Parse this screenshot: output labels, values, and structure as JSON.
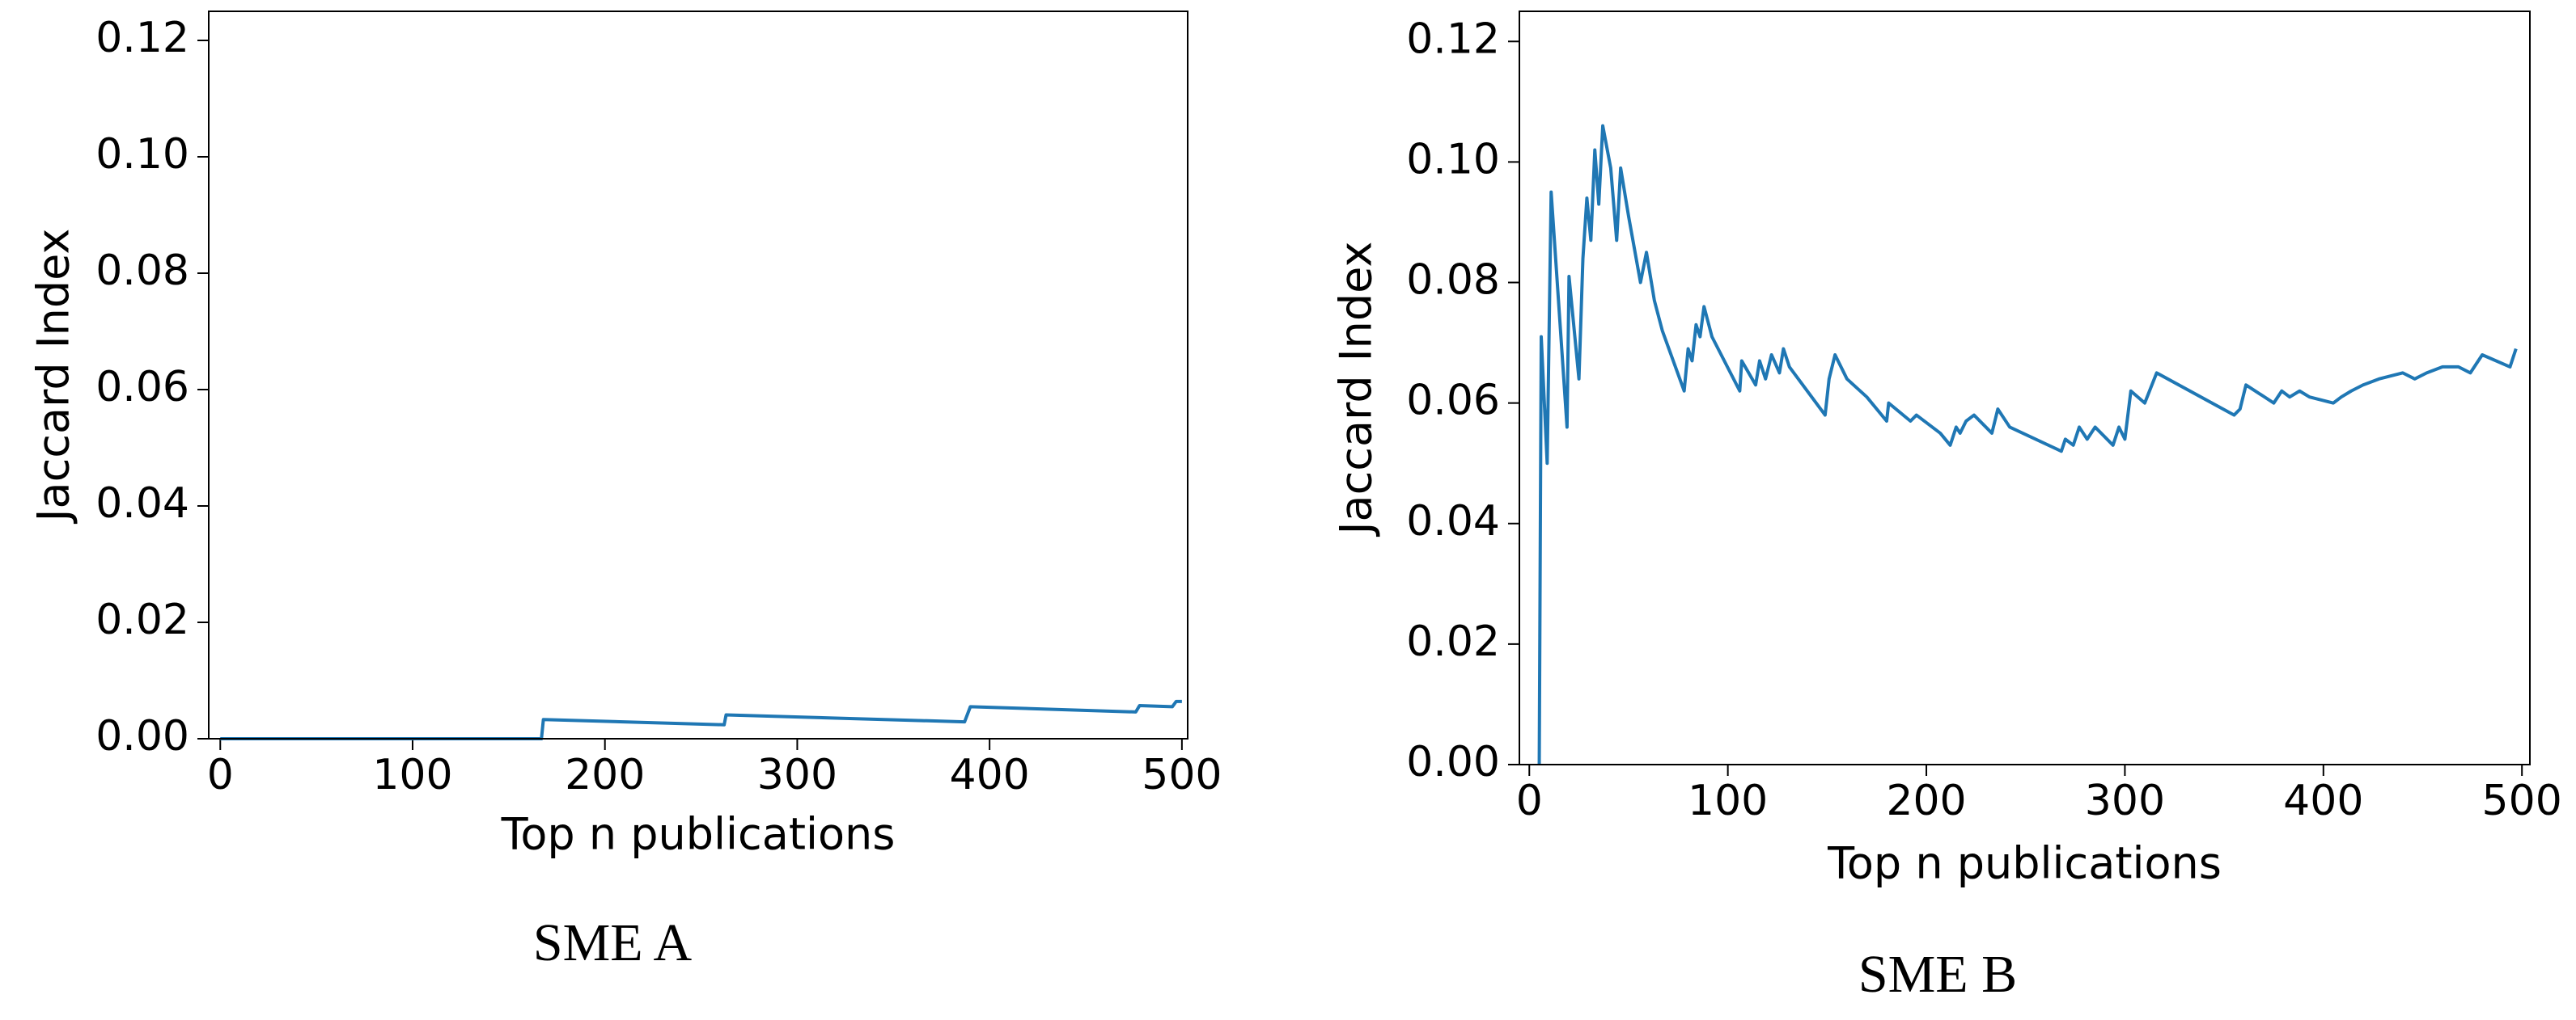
{
  "chart_data": [
    {
      "type": "line",
      "caption": "SME A",
      "xlabel": "Top n publications",
      "ylabel": "Jaccard Index",
      "x": [
        0,
        167,
        168,
        262,
        263,
        387,
        390,
        476,
        478,
        495,
        497,
        500
      ],
      "series": [
        {
          "color": "#1f77b4",
          "values": [
            0,
            0,
            0.0033,
            0.0024,
            0.0041,
            0.0029,
            0.0055,
            0.0046,
            0.0057,
            0.0055,
            0.0064,
            0.0064
          ]
        }
      ],
      "xlim": [
        -6,
        503
      ],
      "ylim": [
        0,
        0.125
      ],
      "xticks": [
        0,
        100,
        200,
        300,
        400,
        500
      ],
      "yticks": [
        {
          "value": 0,
          "label": "0.00"
        },
        0.02,
        0.04,
        0.06,
        0.08,
        {
          "value": 0.1,
          "label": "0.10"
        },
        0.12
      ]
    },
    {
      "type": "line",
      "caption": "SME B",
      "xlabel": "Top n publications",
      "ylabel": "Jaccard Index",
      "x": [
        5,
        6,
        9,
        11,
        19,
        20,
        25,
        27,
        29,
        31,
        33,
        35,
        37,
        41,
        44,
        46,
        50,
        56,
        59,
        63,
        67,
        78,
        80,
        82,
        84,
        86,
        88,
        92,
        106,
        107,
        114,
        116,
        119,
        122,
        126,
        128,
        131,
        149,
        151,
        154,
        160,
        170,
        180,
        181,
        192,
        195,
        207,
        212,
        215,
        217,
        220,
        224,
        233,
        236,
        242,
        268,
        270,
        274,
        277,
        281,
        285,
        294,
        297,
        300,
        303,
        310,
        316,
        355,
        358,
        361,
        375,
        379,
        383,
        388,
        393,
        405,
        409,
        414,
        420,
        428,
        440,
        446,
        452,
        460,
        468,
        474,
        480,
        494,
        497
      ],
      "series": [
        {
          "color": "#1f77b4",
          "values": [
            0,
            0.071,
            0.05,
            0.095,
            0.056,
            0.081,
            0.064,
            0.084,
            0.094,
            0.087,
            0.102,
            0.093,
            0.106,
            0.099,
            0.087,
            0.099,
            0.091,
            0.08,
            0.085,
            0.077,
            0.072,
            0.062,
            0.069,
            0.067,
            0.073,
            0.071,
            0.076,
            0.071,
            0.062,
            0.067,
            0.063,
            0.067,
            0.064,
            0.068,
            0.065,
            0.069,
            0.066,
            0.058,
            0.064,
            0.068,
            0.064,
            0.061,
            0.057,
            0.06,
            0.057,
            0.058,
            0.055,
            0.053,
            0.056,
            0.055,
            0.057,
            0.058,
            0.055,
            0.059,
            0.056,
            0.052,
            0.054,
            0.053,
            0.056,
            0.054,
            0.056,
            0.053,
            0.056,
            0.054,
            0.062,
            0.06,
            0.065,
            0.058,
            0.059,
            0.063,
            0.06,
            0.062,
            0.061,
            0.062,
            0.061,
            0.06,
            0.061,
            0.062,
            0.063,
            0.064,
            0.065,
            0.064,
            0.065,
            0.066,
            0.066,
            0.065,
            0.068,
            0.066,
            0.069
          ]
        }
      ],
      "xlim": [
        -5,
        504
      ],
      "ylim": [
        0,
        0.125
      ],
      "xticks": [
        0,
        100,
        200,
        300,
        400,
        500
      ],
      "yticks": [
        {
          "value": 0,
          "label": "0.00"
        },
        0.02,
        0.04,
        0.06,
        0.08,
        {
          "value": 0.1,
          "label": "0.10"
        },
        0.12
      ]
    }
  ]
}
